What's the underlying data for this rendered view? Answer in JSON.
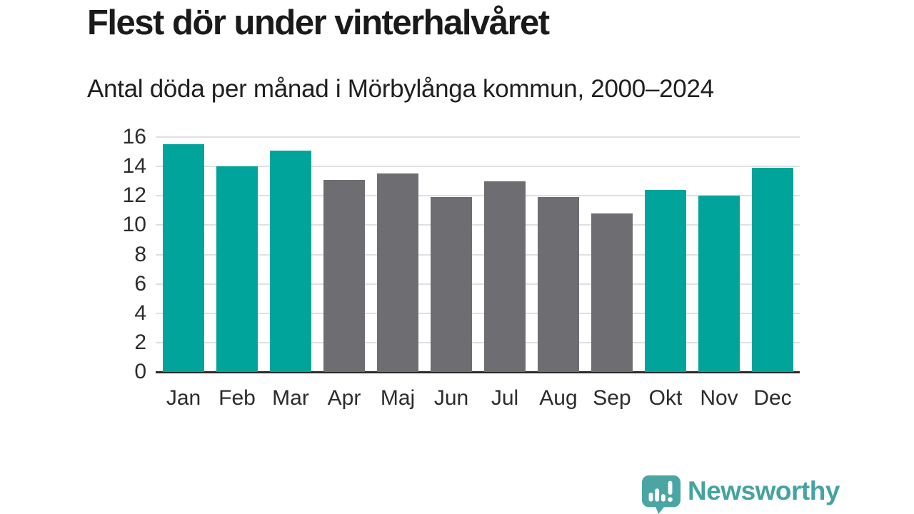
{
  "header": {
    "title": "Flest dör under vinterhalvåret",
    "subtitle": "Antal döda per månad i Mörbylånga kommun, 2000–2024"
  },
  "chart_data": {
    "type": "bar",
    "title": "Flest dör under vinterhalvåret",
    "subtitle": "Antal döda per månad i Mörbylånga kommun, 2000–2024",
    "categories": [
      "Jan",
      "Feb",
      "Mar",
      "Apr",
      "Maj",
      "Jun",
      "Jul",
      "Aug",
      "Sep",
      "Okt",
      "Nov",
      "Dec"
    ],
    "values": [
      15.5,
      14.0,
      15.1,
      13.1,
      13.5,
      11.9,
      13.0,
      11.9,
      10.8,
      12.4,
      12.0,
      13.9
    ],
    "bar_colors": [
      "#00a49b",
      "#00a49b",
      "#00a49b",
      "#6e6d72",
      "#6e6d72",
      "#6e6d72",
      "#6e6d72",
      "#6e6d72",
      "#6e6d72",
      "#00a49b",
      "#00a49b",
      "#00a49b"
    ],
    "xlabel": "",
    "ylabel": "",
    "ylim": [
      0,
      16
    ],
    "yticks": [
      0,
      2,
      4,
      6,
      8,
      10,
      12,
      14,
      16
    ],
    "grid": true,
    "legend": "none",
    "colors": {
      "winter_accent": "#00a49b",
      "summer_gray": "#6e6d72",
      "gridline": "#e0e0e0",
      "baseline": "#2b2b2b",
      "text": "#1a1a1a"
    }
  },
  "footer": {
    "brand": "Newsworthy",
    "brand_color": "#45a3a1",
    "logo_icon": "newsworthy-speech-bubble-chart-icon"
  }
}
